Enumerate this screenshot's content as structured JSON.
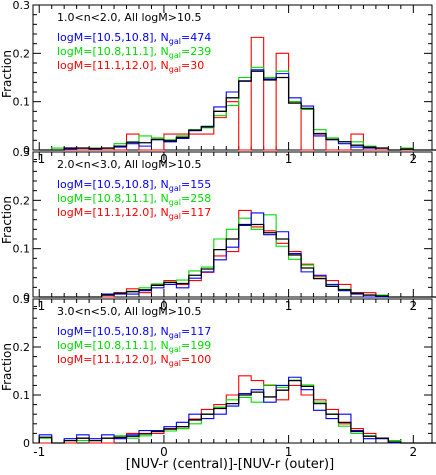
{
  "figure": {
    "xlabel": "[NUV-r (central)]-[NUV-r (outer)]",
    "ylabel": "Fraction"
  },
  "colors": {
    "black": "#000000",
    "blue": "#0000ff",
    "green": "#00dd00",
    "red": "#ff0000"
  },
  "chart_data": [
    {
      "type": "histogram",
      "title": "1.0<n<2.0, All logM>10.5",
      "xlabel": "",
      "ylabel": "Fraction",
      "xlim": [
        -1.05,
        2.15
      ],
      "ylim": [
        0,
        0.3
      ],
      "x_ticks": [
        "-1",
        "0",
        "1",
        "2"
      ],
      "y_ticks": [
        "0",
        "0.1",
        "0.2",
        "0.3"
      ],
      "bin_start": -1.0,
      "bin_width": 0.1,
      "legend": [
        {
          "color": "blue",
          "label": "logM=[10.5,10.8], ",
          "n_label": "N",
          "n_sub": "gal",
          "n_value": "=474"
        },
        {
          "color": "green",
          "label": "logM=[10.8,11.1], ",
          "n_label": "N",
          "n_sub": "gal",
          "n_value": "=239"
        },
        {
          "color": "red",
          "label": "logM=[11.1,12.0], ",
          "n_label": "N",
          "n_sub": "gal",
          "n_value": "=30"
        }
      ],
      "series": [
        {
          "name": "all",
          "color": "black",
          "values": [
            0.0,
            0.0,
            0.004,
            0.004,
            0.003,
            0.004,
            0.008,
            0.016,
            0.015,
            0.022,
            0.019,
            0.026,
            0.041,
            0.048,
            0.08,
            0.108,
            0.143,
            0.163,
            0.145,
            0.15,
            0.097,
            0.086,
            0.034,
            0.022,
            0.017,
            0.01,
            0.006,
            0.004,
            0.0,
            0.002,
            0.0,
            0.0
          ]
        },
        {
          "name": "logM=[10.5,10.8]",
          "color": "blue",
          "values": [
            0.0,
            0.0,
            0.002,
            0.004,
            0.002,
            0.004,
            0.006,
            0.013,
            0.008,
            0.021,
            0.017,
            0.024,
            0.04,
            0.049,
            0.089,
            0.12,
            0.142,
            0.166,
            0.147,
            0.158,
            0.108,
            0.091,
            0.029,
            0.021,
            0.013,
            0.006,
            0.004,
            0.004,
            0.0,
            0.002,
            0.0,
            0.0
          ]
        },
        {
          "name": "logM=[10.8,11.1]",
          "color": "green",
          "values": [
            0.0,
            0.004,
            0.004,
            0.004,
            0.004,
            0.004,
            0.013,
            0.017,
            0.029,
            0.025,
            0.021,
            0.029,
            0.042,
            0.046,
            0.071,
            0.092,
            0.15,
            0.171,
            0.15,
            0.163,
            0.1,
            0.084,
            0.042,
            0.025,
            0.017,
            0.017,
            0.008,
            0.004,
            0.0,
            0.004,
            0.0,
            0.0
          ]
        },
        {
          "name": "logM=[11.1,12.0]",
          "color": "red",
          "values": [
            0.0,
            0.0,
            0.0,
            0.0,
            0.0,
            0.0,
            0.0,
            0.033,
            0.0,
            0.0,
            0.033,
            0.033,
            0.033,
            0.033,
            0.067,
            0.1,
            0.0,
            0.233,
            0.0,
            0.2,
            0.1,
            0.0,
            0.033,
            0.0,
            0.0,
            0.033,
            0.0,
            0.0,
            0.0,
            0.0,
            0.0,
            0.0
          ]
        }
      ]
    },
    {
      "type": "histogram",
      "title": "2.0<n<3.0, All logM>10.5",
      "xlabel": "",
      "ylabel": "Fraction",
      "xlim": [
        -1.05,
        2.15
      ],
      "ylim": [
        0,
        0.3
      ],
      "x_ticks": [
        "-1",
        "0",
        "1",
        "2"
      ],
      "y_ticks": [
        "0",
        "0.1",
        "0.2",
        "0.3"
      ],
      "bin_start": -1.0,
      "bin_width": 0.1,
      "legend": [
        {
          "color": "blue",
          "label": "logM=[10.5,10.8], ",
          "n_label": "N",
          "n_sub": "gal",
          "n_value": "=155"
        },
        {
          "color": "green",
          "label": "logM=[10.8,11.1], ",
          "n_label": "N",
          "n_sub": "gal",
          "n_value": "=258"
        },
        {
          "color": "red",
          "label": "logM=[11.1,12.0], ",
          "n_label": "N",
          "n_sub": "gal",
          "n_value": "=117"
        }
      ],
      "series": [
        {
          "name": "all",
          "color": "black",
          "values": [
            0.0,
            0.0,
            0.0,
            0.0,
            0.0,
            0.004,
            0.008,
            0.011,
            0.015,
            0.024,
            0.03,
            0.028,
            0.045,
            0.058,
            0.098,
            0.12,
            0.15,
            0.15,
            0.133,
            0.12,
            0.087,
            0.06,
            0.038,
            0.022,
            0.015,
            0.008,
            0.004,
            0.002,
            0.0,
            0.0,
            0.0,
            0.0
          ]
        },
        {
          "name": "logM=[10.5,10.8]",
          "color": "blue",
          "values": [
            0.0,
            0.0,
            0.0,
            0.0,
            0.0,
            0.006,
            0.006,
            0.006,
            0.013,
            0.019,
            0.026,
            0.019,
            0.039,
            0.052,
            0.077,
            0.103,
            0.148,
            0.174,
            0.129,
            0.135,
            0.09,
            0.052,
            0.045,
            0.026,
            0.013,
            0.006,
            0.0,
            0.0,
            0.0,
            0.0,
            0.0,
            0.0
          ]
        },
        {
          "name": "logM=[10.8,11.1]",
          "color": "green",
          "values": [
            0.0,
            0.0,
            0.0,
            0.0,
            0.0,
            0.004,
            0.008,
            0.012,
            0.019,
            0.027,
            0.031,
            0.035,
            0.054,
            0.062,
            0.12,
            0.14,
            0.163,
            0.14,
            0.17,
            0.105,
            0.078,
            0.066,
            0.039,
            0.023,
            0.016,
            0.008,
            0.004,
            0.004,
            0.0,
            0.0,
            0.0,
            0.0
          ]
        },
        {
          "name": "logM=[11.1,12.0]",
          "color": "red",
          "values": [
            0.0,
            0.0,
            0.0,
            0.0,
            0.0,
            0.0,
            0.009,
            0.017,
            0.009,
            0.026,
            0.034,
            0.026,
            0.034,
            0.051,
            0.085,
            0.094,
            0.179,
            0.145,
            0.137,
            0.111,
            0.094,
            0.068,
            0.043,
            0.034,
            0.026,
            0.009,
            0.009,
            0.0,
            0.0,
            0.0,
            0.0,
            0.0
          ]
        }
      ]
    },
    {
      "type": "histogram",
      "title": "3.0<n<5.0, All logM>10.5",
      "xlabel": "[NUV-r (central)]-[NUV-r (outer)]",
      "ylabel": "Fraction",
      "xlim": [
        -1.05,
        2.15
      ],
      "ylim": [
        0,
        0.3
      ],
      "x_ticks": [
        "-1",
        "0",
        "1",
        "2"
      ],
      "y_ticks": [
        "0",
        "0.1",
        "0.2",
        "0.3"
      ],
      "bin_start": -1.0,
      "bin_width": 0.1,
      "legend": [
        {
          "color": "blue",
          "label": "logM=[10.5,10.8], ",
          "n_label": "N",
          "n_sub": "gal",
          "n_value": "=117"
        },
        {
          "color": "green",
          "label": "logM=[10.8,11.1], ",
          "n_label": "N",
          "n_sub": "gal",
          "n_value": "=199"
        },
        {
          "color": "red",
          "label": "logM=[11.1,12.0], ",
          "n_label": "N",
          "n_sub": "gal",
          "n_value": "=100"
        }
      ],
      "series": [
        {
          "name": "all",
          "color": "black",
          "values": [
            0.012,
            0.0,
            0.005,
            0.01,
            0.005,
            0.01,
            0.012,
            0.014,
            0.019,
            0.024,
            0.029,
            0.034,
            0.048,
            0.06,
            0.072,
            0.082,
            0.1,
            0.106,
            0.096,
            0.11,
            0.13,
            0.118,
            0.082,
            0.06,
            0.043,
            0.024,
            0.014,
            0.01,
            0.002,
            0.0,
            0.0,
            0.0
          ]
        },
        {
          "name": "logM=[10.5,10.8]",
          "color": "blue",
          "values": [
            0.017,
            0.0,
            0.009,
            0.017,
            0.009,
            0.017,
            0.009,
            0.017,
            0.026,
            0.026,
            0.034,
            0.043,
            0.06,
            0.051,
            0.06,
            0.077,
            0.103,
            0.111,
            0.085,
            0.12,
            0.137,
            0.111,
            0.068,
            0.051,
            0.06,
            0.026,
            0.009,
            0.009,
            0.0,
            0.0,
            0.0,
            0.0
          ]
        },
        {
          "name": "logM=[10.8,11.1]",
          "color": "green",
          "values": [
            0.01,
            0.0,
            0.005,
            0.005,
            0.005,
            0.01,
            0.015,
            0.01,
            0.015,
            0.025,
            0.025,
            0.03,
            0.04,
            0.06,
            0.075,
            0.09,
            0.095,
            0.085,
            0.121,
            0.116,
            0.131,
            0.121,
            0.085,
            0.06,
            0.035,
            0.02,
            0.015,
            0.01,
            0.005,
            0.0,
            0.0,
            0.0
          ]
        },
        {
          "name": "logM=[11.1,12.0]",
          "color": "red",
          "values": [
            0.0,
            0.0,
            0.0,
            0.01,
            0.0,
            0.0,
            0.01,
            0.02,
            0.02,
            0.02,
            0.03,
            0.03,
            0.05,
            0.07,
            0.08,
            0.1,
            0.14,
            0.13,
            0.12,
            0.09,
            0.12,
            0.1,
            0.09,
            0.07,
            0.04,
            0.03,
            0.02,
            0.01,
            0.0,
            0.0,
            0.0,
            0.0
          ]
        }
      ]
    }
  ]
}
